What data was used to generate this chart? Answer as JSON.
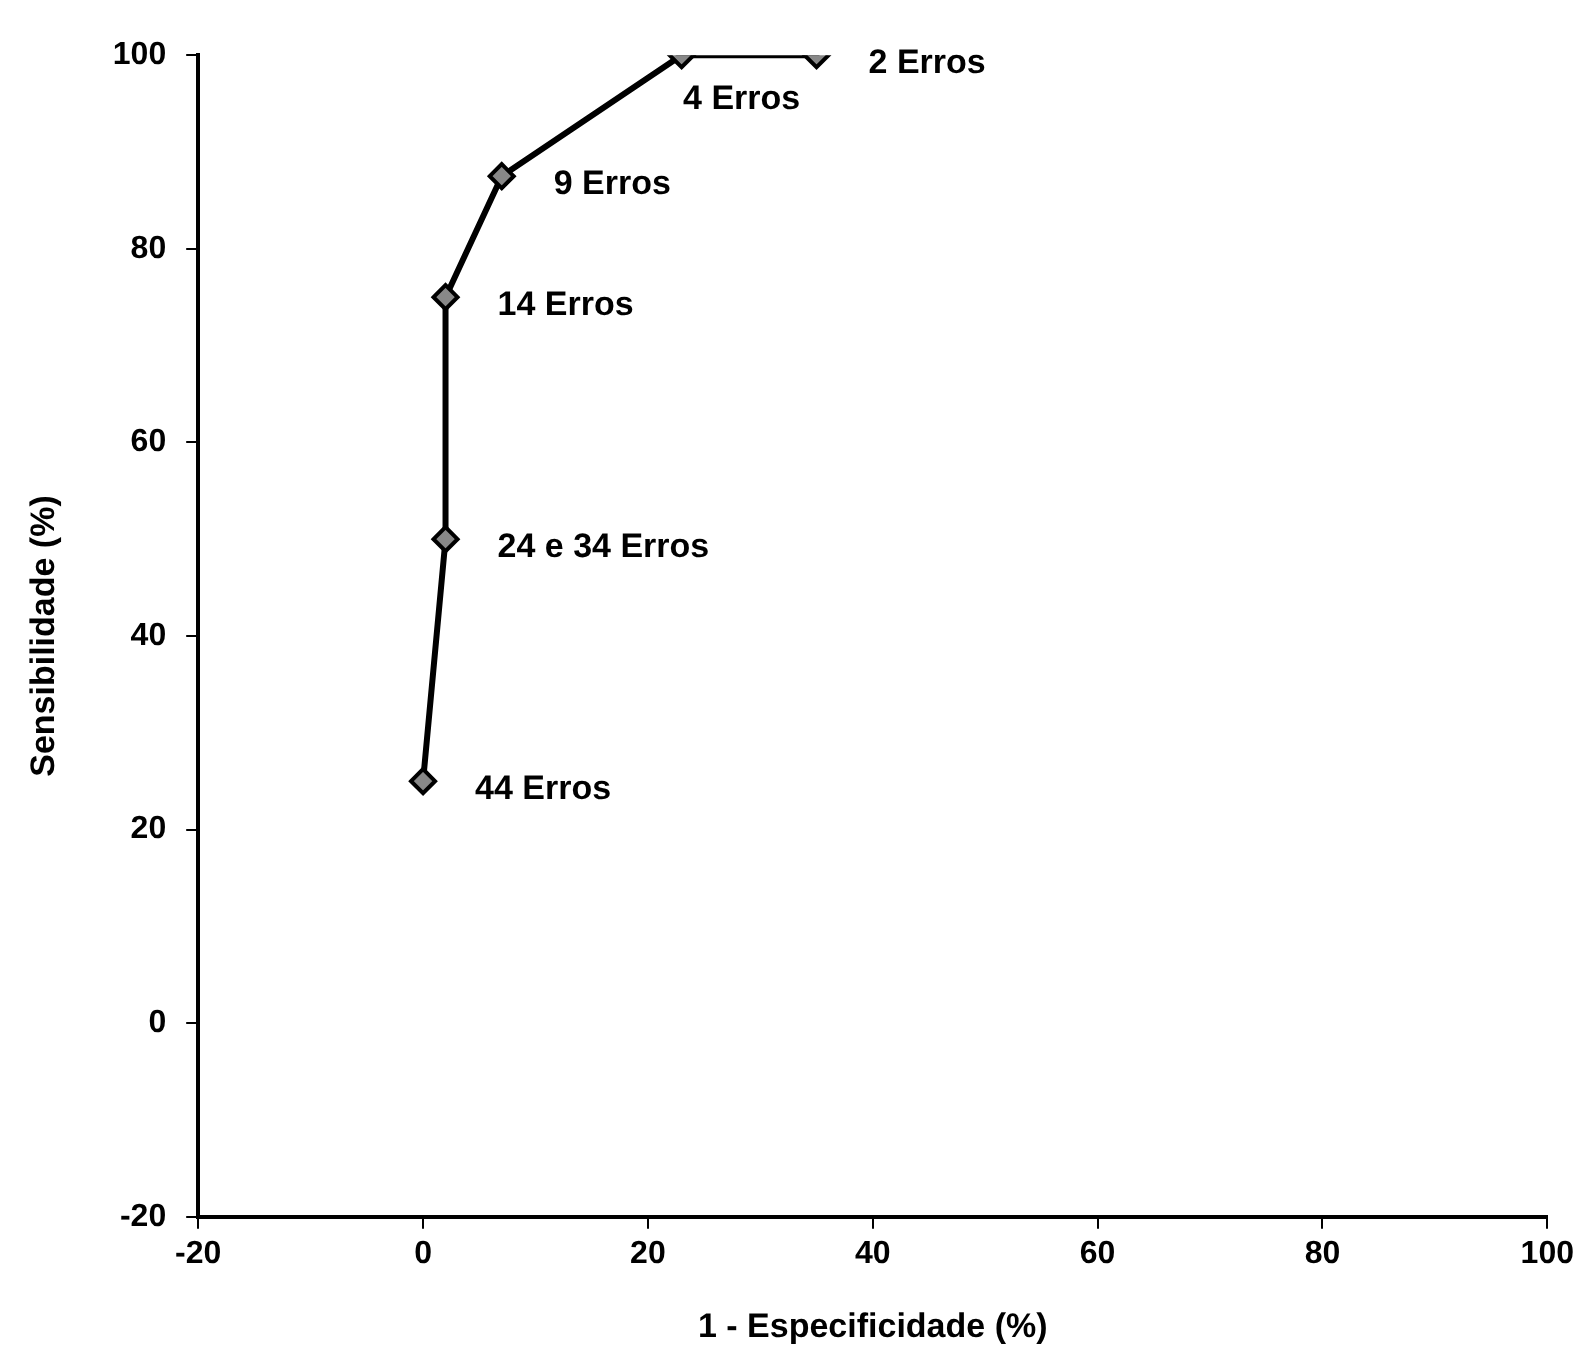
{
  "chart_data": {
    "type": "line",
    "xlabel": "1 - Especificidade (%)",
    "ylabel": "Sensibilidade (%)",
    "x": [
      0,
      2,
      2,
      7,
      23,
      35
    ],
    "values": [
      25,
      50,
      75,
      87.5,
      100,
      100
    ],
    "color": "#000000",
    "marker": "diamond",
    "line_style": "solid",
    "xlim": [
      -20,
      100
    ],
    "xticks": [
      -20,
      0,
      20,
      40,
      60,
      80,
      100
    ],
    "ylim": [
      -20,
      100
    ],
    "yticks": [
      -20,
      0,
      20,
      40,
      60,
      80,
      100
    ],
    "grid": false,
    "legend": false,
    "annotations": [
      {
        "text": "44 Erros",
        "x": 0,
        "y": 25
      },
      {
        "text": "24 e 34 Erros",
        "x": 2,
        "y": 50
      },
      {
        "text": "14 Erros",
        "x": 2,
        "y": 75
      },
      {
        "text": "9 Erros",
        "x": 7,
        "y": 87.5
      },
      {
        "text": "4 Erros",
        "x": 23,
        "y": 100
      },
      {
        "text": "2 Erros",
        "x": 35,
        "y": 100
      }
    ]
  }
}
